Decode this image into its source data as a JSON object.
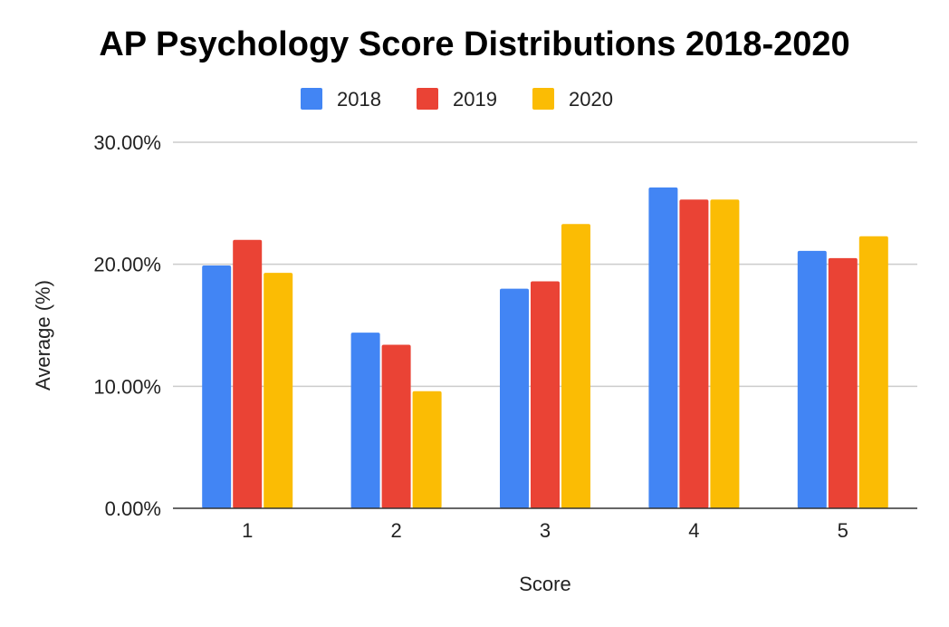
{
  "chart_data": {
    "type": "bar",
    "title": "AP Psychology Score Distributions 2018-2020",
    "xlabel": "Score",
    "ylabel": "Average (%)",
    "categories": [
      "1",
      "2",
      "3",
      "4",
      "5"
    ],
    "series": [
      {
        "name": "2018",
        "color": "#4285F4",
        "values": [
          19.9,
          14.4,
          18.0,
          26.3,
          21.1
        ]
      },
      {
        "name": "2019",
        "color": "#EA4335",
        "values": [
          22.0,
          13.4,
          18.6,
          25.3,
          20.5
        ]
      },
      {
        "name": "2020",
        "color": "#FBBC04",
        "values": [
          19.3,
          9.6,
          23.3,
          25.3,
          22.3
        ]
      }
    ],
    "ylim": [
      0,
      30
    ],
    "yticks": [
      "0.00%",
      "10.00%",
      "20.00%",
      "30.00%"
    ],
    "grid": true,
    "legend": "top-center"
  }
}
